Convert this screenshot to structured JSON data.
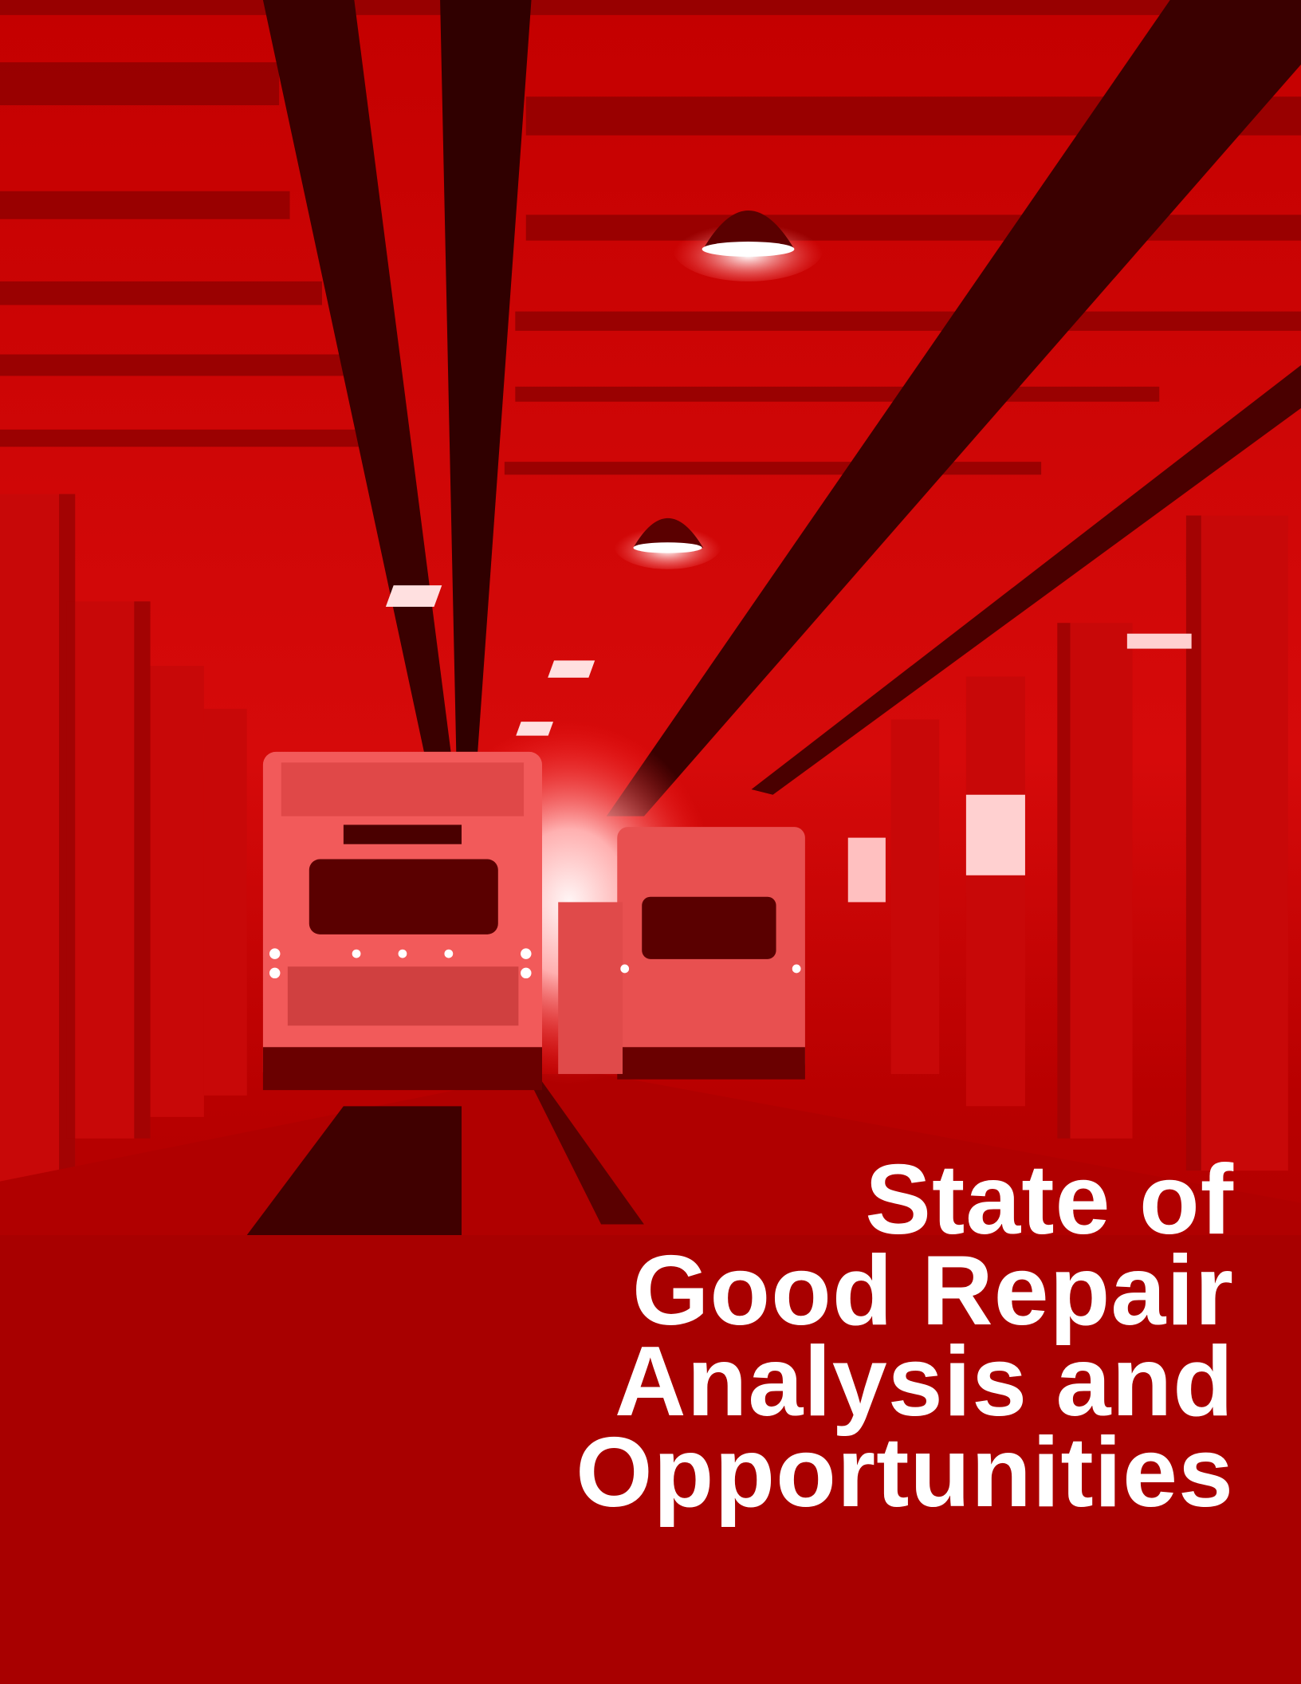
{
  "title": {
    "lines": [
      "State of",
      "Good Repair",
      "Analysis and",
      "Opportunities"
    ]
  }
}
